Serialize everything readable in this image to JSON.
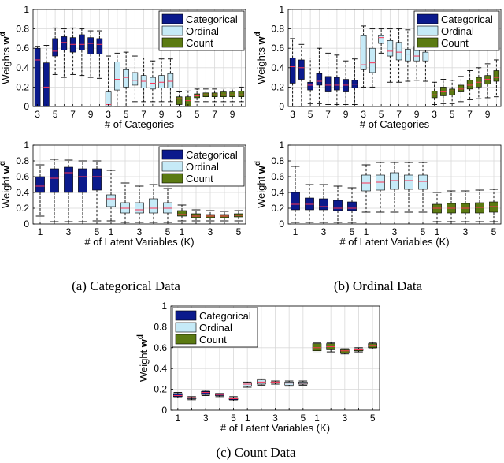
{
  "colors": {
    "categorical": "#0b1a8c",
    "ordinal": "#c6eaf7",
    "count": "#5b7a12",
    "median": "#ff3355",
    "whisker": "#000000",
    "grid": "#d9d9d9"
  },
  "legend": [
    "Categorical",
    "Ordinal",
    "Count"
  ],
  "captions": {
    "a": "(a) Categorical Data",
    "b": "(b) Ordinal Data",
    "c": "(c) Count Data"
  },
  "chart_data": [
    {
      "id": "a-top",
      "type": "boxplot",
      "xlabel": "# of Categories",
      "ylabel": "Weights w",
      "ylabel_sup": "d",
      "ylim": [
        0,
        1
      ],
      "yticks": [
        "0",
        "0.2",
        "0.4",
        "0.6",
        "0.8",
        "1"
      ],
      "xticklabels": [
        "3",
        "",
        "5",
        "",
        "7",
        "",
        "9",
        "",
        "3",
        "",
        "5",
        "",
        "7",
        "",
        "9",
        "",
        "3",
        "",
        "5",
        "",
        "7",
        "",
        "9",
        ""
      ],
      "legend_position": "top-right",
      "grid": true,
      "groups": [
        {
          "series": "Categorical",
          "boxes": [
            {
              "q1": 0.0,
              "med": 0.48,
              "q3": 0.6,
              "lo": 0.0,
              "hi": 0.62
            },
            {
              "q1": 0.0,
              "med": 0.2,
              "q3": 0.45,
              "lo": 0.0,
              "hi": 0.63
            },
            {
              "q1": 0.52,
              "med": 0.57,
              "q3": 0.7,
              "lo": 0.33,
              "hi": 0.81
            },
            {
              "q1": 0.58,
              "med": 0.66,
              "q3": 0.72,
              "lo": 0.3,
              "hi": 0.8
            },
            {
              "q1": 0.56,
              "med": 0.64,
              "q3": 0.71,
              "lo": 0.33,
              "hi": 0.81
            },
            {
              "q1": 0.58,
              "med": 0.64,
              "q3": 0.74,
              "lo": 0.32,
              "hi": 0.8
            },
            {
              "q1": 0.54,
              "med": 0.65,
              "q3": 0.71,
              "lo": 0.3,
              "hi": 0.78
            },
            {
              "q1": 0.54,
              "med": 0.64,
              "q3": 0.7,
              "lo": 0.29,
              "hi": 0.78
            }
          ]
        },
        {
          "series": "Ordinal",
          "boxes": [
            {
              "q1": 0.0,
              "med": 0.02,
              "q3": 0.15,
              "lo": 0.0,
              "hi": 0.52
            },
            {
              "q1": 0.17,
              "med": 0.28,
              "q3": 0.46,
              "lo": 0.0,
              "hi": 0.55
            },
            {
              "q1": 0.2,
              "med": 0.3,
              "q3": 0.38,
              "lo": 0.0,
              "hi": 0.56
            },
            {
              "q1": 0.22,
              "med": 0.27,
              "q3": 0.35,
              "lo": 0.05,
              "hi": 0.52
            },
            {
              "q1": 0.19,
              "med": 0.26,
              "q3": 0.32,
              "lo": 0.05,
              "hi": 0.5
            },
            {
              "q1": 0.18,
              "med": 0.24,
              "q3": 0.3,
              "lo": 0.05,
              "hi": 0.47
            },
            {
              "q1": 0.19,
              "med": 0.25,
              "q3": 0.32,
              "lo": 0.05,
              "hi": 0.49
            },
            {
              "q1": 0.19,
              "med": 0.26,
              "q3": 0.34,
              "lo": 0.05,
              "hi": 0.49
            }
          ]
        },
        {
          "series": "Count",
          "boxes": [
            {
              "q1": 0.02,
              "med": 0.08,
              "q3": 0.1,
              "lo": 0.0,
              "hi": 0.15
            },
            {
              "q1": 0.0,
              "med": 0.06,
              "q3": 0.1,
              "lo": 0.0,
              "hi": 0.16
            },
            {
              "q1": 0.09,
              "med": 0.11,
              "q3": 0.13,
              "lo": 0.05,
              "hi": 0.18
            },
            {
              "q1": 0.1,
              "med": 0.12,
              "q3": 0.14,
              "lo": 0.05,
              "hi": 0.18
            },
            {
              "q1": 0.1,
              "med": 0.12,
              "q3": 0.14,
              "lo": 0.05,
              "hi": 0.18
            },
            {
              "q1": 0.1,
              "med": 0.12,
              "q3": 0.15,
              "lo": 0.05,
              "hi": 0.19
            },
            {
              "q1": 0.1,
              "med": 0.12,
              "q3": 0.15,
              "lo": 0.05,
              "hi": 0.19
            },
            {
              "q1": 0.1,
              "med": 0.12,
              "q3": 0.16,
              "lo": 0.05,
              "hi": 0.2
            }
          ]
        }
      ]
    },
    {
      "id": "b-top",
      "type": "boxplot",
      "xlabel": "# of Categories",
      "ylabel": "Weights w",
      "ylabel_sup": "d",
      "ylim": [
        0,
        1
      ],
      "yticks": [
        "0",
        "0.2",
        "0.4",
        "0.6",
        "0.8",
        "1"
      ],
      "xticklabels": [
        "3",
        "",
        "5",
        "",
        "7",
        "",
        "9",
        "",
        "3",
        "",
        "5",
        "",
        "7",
        "",
        "9",
        "",
        "3",
        "",
        "5",
        "",
        "7",
        "",
        "9",
        ""
      ],
      "legend_position": "top-right",
      "grid": true,
      "groups": [
        {
          "series": "Categorical",
          "boxes": [
            {
              "q1": 0.24,
              "med": 0.41,
              "q3": 0.5,
              "lo": 0.0,
              "hi": 0.7
            },
            {
              "q1": 0.28,
              "med": 0.4,
              "q3": 0.48,
              "lo": 0.0,
              "hi": 0.64
            },
            {
              "q1": 0.17,
              "med": 0.22,
              "q3": 0.25,
              "lo": 0.03,
              "hi": 0.5
            },
            {
              "q1": 0.22,
              "med": 0.26,
              "q3": 0.34,
              "lo": 0.03,
              "hi": 0.6
            },
            {
              "q1": 0.15,
              "med": 0.22,
              "q3": 0.31,
              "lo": 0.02,
              "hi": 0.55
            },
            {
              "q1": 0.17,
              "med": 0.22,
              "q3": 0.3,
              "lo": 0.02,
              "hi": 0.53
            },
            {
              "q1": 0.15,
              "med": 0.22,
              "q3": 0.28,
              "lo": 0.02,
              "hi": 0.47
            },
            {
              "q1": 0.19,
              "med": 0.23,
              "q3": 0.27,
              "lo": 0.02,
              "hi": 0.49
            }
          ]
        },
        {
          "series": "Ordinal",
          "boxes": [
            {
              "q1": 0.38,
              "med": 0.43,
              "q3": 0.73,
              "lo": 0.2,
              "hi": 0.83
            },
            {
              "q1": 0.35,
              "med": 0.45,
              "q3": 0.6,
              "lo": 0.2,
              "hi": 0.8
            },
            {
              "q1": 0.65,
              "med": 0.71,
              "q3": 0.73,
              "lo": 0.55,
              "hi": 0.8
            },
            {
              "q1": 0.52,
              "med": 0.57,
              "q3": 0.68,
              "lo": 0.25,
              "hi": 0.8
            },
            {
              "q1": 0.48,
              "med": 0.56,
              "q3": 0.66,
              "lo": 0.25,
              "hi": 0.8
            },
            {
              "q1": 0.47,
              "med": 0.54,
              "q3": 0.59,
              "lo": 0.26,
              "hi": 0.79
            },
            {
              "q1": 0.47,
              "med": 0.52,
              "q3": 0.62,
              "lo": 0.27,
              "hi": 0.8
            },
            {
              "q1": 0.47,
              "med": 0.5,
              "q3": 0.56,
              "lo": 0.26,
              "hi": 0.78
            }
          ]
        },
        {
          "series": "Count",
          "boxes": [
            {
              "q1": 0.09,
              "med": 0.12,
              "q3": 0.16,
              "lo": 0.02,
              "hi": 0.25
            },
            {
              "q1": 0.11,
              "med": 0.15,
              "q3": 0.2,
              "lo": 0.03,
              "hi": 0.28
            },
            {
              "q1": 0.12,
              "med": 0.16,
              "q3": 0.18,
              "lo": 0.03,
              "hi": 0.27
            },
            {
              "q1": 0.15,
              "med": 0.18,
              "q3": 0.22,
              "lo": 0.05,
              "hi": 0.31
            },
            {
              "q1": 0.18,
              "med": 0.22,
              "q3": 0.27,
              "lo": 0.07,
              "hi": 0.37
            },
            {
              "q1": 0.2,
              "med": 0.25,
              "q3": 0.3,
              "lo": 0.08,
              "hi": 0.4
            },
            {
              "q1": 0.23,
              "med": 0.28,
              "q3": 0.32,
              "lo": 0.09,
              "hi": 0.44
            },
            {
              "q1": 0.26,
              "med": 0.3,
              "q3": 0.37,
              "lo": 0.1,
              "hi": 0.48
            }
          ]
        }
      ]
    },
    {
      "id": "a-bottom",
      "type": "boxplot",
      "xlabel": "# of Latent Variables (K)",
      "ylabel": "Weight w",
      "ylabel_sup": "d",
      "ylim": [
        0,
        1
      ],
      "yticks": [
        "0",
        "0.2",
        "0.4",
        "0.6",
        "0.8",
        "1"
      ],
      "xticklabels": [
        "1",
        "",
        "3",
        "",
        "5",
        "1",
        "",
        "3",
        "",
        "5",
        "1",
        "",
        "3",
        "",
        "5"
      ],
      "legend_position": "top-right",
      "grid": true,
      "groups": [
        {
          "series": "Categorical",
          "boxes": [
            {
              "q1": 0.4,
              "med": 0.48,
              "q3": 0.6,
              "lo": 0.1,
              "hi": 0.75
            },
            {
              "q1": 0.4,
              "med": 0.58,
              "q3": 0.7,
              "lo": 0.03,
              "hi": 0.82
            },
            {
              "q1": 0.4,
              "med": 0.65,
              "q3": 0.72,
              "lo": 0.03,
              "hi": 0.81
            },
            {
              "q1": 0.4,
              "med": 0.6,
              "q3": 0.7,
              "lo": 0.03,
              "hi": 0.8
            },
            {
              "q1": 0.43,
              "med": 0.6,
              "q3": 0.7,
              "lo": 0.04,
              "hi": 0.8
            }
          ]
        },
        {
          "series": "Ordinal",
          "boxes": [
            {
              "q1": 0.22,
              "med": 0.32,
              "q3": 0.37,
              "lo": 0.04,
              "hi": 0.68
            },
            {
              "q1": 0.14,
              "med": 0.2,
              "q3": 0.27,
              "lo": 0.02,
              "hi": 0.52
            },
            {
              "q1": 0.14,
              "med": 0.18,
              "q3": 0.27,
              "lo": 0.02,
              "hi": 0.48
            },
            {
              "q1": 0.14,
              "med": 0.2,
              "q3": 0.32,
              "lo": 0.02,
              "hi": 0.5
            },
            {
              "q1": 0.14,
              "med": 0.2,
              "q3": 0.27,
              "lo": 0.02,
              "hi": 0.45
            }
          ]
        },
        {
          "series": "Count",
          "boxes": [
            {
              "q1": 0.1,
              "med": 0.12,
              "q3": 0.17,
              "lo": 0.04,
              "hi": 0.24
            },
            {
              "q1": 0.08,
              "med": 0.1,
              "q3": 0.13,
              "lo": 0.04,
              "hi": 0.18
            },
            {
              "q1": 0.08,
              "med": 0.1,
              "q3": 0.12,
              "lo": 0.04,
              "hi": 0.17
            },
            {
              "q1": 0.08,
              "med": 0.1,
              "q3": 0.12,
              "lo": 0.04,
              "hi": 0.16
            },
            {
              "q1": 0.09,
              "med": 0.11,
              "q3": 0.13,
              "lo": 0.04,
              "hi": 0.17
            }
          ]
        }
      ]
    },
    {
      "id": "b-bottom",
      "type": "boxplot",
      "xlabel": "# of Latent Variables (K)",
      "ylabel": "Weight w",
      "ylabel_sup": "d",
      "ylim": [
        0,
        1
      ],
      "yticks": [
        "0",
        "0.2",
        "0.4",
        "0.6",
        "0.8",
        "1"
      ],
      "xticklabels": [
        "1",
        "",
        "3",
        "",
        "5",
        "1",
        "",
        "3",
        "",
        "5",
        "1",
        "",
        "3",
        "",
        "5"
      ],
      "legend_position": "none",
      "grid": true,
      "groups": [
        {
          "series": "Categorical",
          "boxes": [
            {
              "q1": 0.18,
              "med": 0.25,
              "q3": 0.4,
              "lo": 0.02,
              "hi": 0.73
            },
            {
              "q1": 0.18,
              "med": 0.25,
              "q3": 0.33,
              "lo": 0.02,
              "hi": 0.5
            },
            {
              "q1": 0.18,
              "med": 0.22,
              "q3": 0.32,
              "lo": 0.02,
              "hi": 0.5
            },
            {
              "q1": 0.17,
              "med": 0.2,
              "q3": 0.3,
              "lo": 0.02,
              "hi": 0.48
            },
            {
              "q1": 0.17,
              "med": 0.2,
              "q3": 0.28,
              "lo": 0.02,
              "hi": 0.46
            }
          ]
        },
        {
          "series": "Ordinal",
          "boxes": [
            {
              "q1": 0.42,
              "med": 0.52,
              "q3": 0.62,
              "lo": 0.15,
              "hi": 0.75
            },
            {
              "q1": 0.43,
              "med": 0.53,
              "q3": 0.62,
              "lo": 0.15,
              "hi": 0.78
            },
            {
              "q1": 0.44,
              "med": 0.55,
              "q3": 0.65,
              "lo": 0.15,
              "hi": 0.78
            },
            {
              "q1": 0.44,
              "med": 0.55,
              "q3": 0.62,
              "lo": 0.15,
              "hi": 0.78
            },
            {
              "q1": 0.44,
              "med": 0.54,
              "q3": 0.62,
              "lo": 0.15,
              "hi": 0.78
            }
          ]
        },
        {
          "series": "Count",
          "boxes": [
            {
              "q1": 0.14,
              "med": 0.2,
              "q3": 0.25,
              "lo": 0.03,
              "hi": 0.4
            },
            {
              "q1": 0.14,
              "med": 0.2,
              "q3": 0.26,
              "lo": 0.03,
              "hi": 0.42
            },
            {
              "q1": 0.14,
              "med": 0.2,
              "q3": 0.26,
              "lo": 0.03,
              "hi": 0.42
            },
            {
              "q1": 0.14,
              "med": 0.21,
              "q3": 0.27,
              "lo": 0.03,
              "hi": 0.43
            },
            {
              "q1": 0.15,
              "med": 0.22,
              "q3": 0.28,
              "lo": 0.03,
              "hi": 0.44
            }
          ]
        }
      ]
    },
    {
      "id": "c",
      "type": "boxplot",
      "xlabel": "# of Latent Variables (K)",
      "ylabel": "Weight w",
      "ylabel_sup": "d",
      "ylim": [
        0,
        1
      ],
      "yticks": [
        "0",
        "0.2",
        "0.4",
        "0.6",
        "0.8",
        "1"
      ],
      "xticklabels": [
        "1",
        "",
        "3",
        "",
        "5",
        "1",
        "",
        "3",
        "",
        "5",
        "1",
        "",
        "3",
        "",
        "5"
      ],
      "legend_position": "top-left",
      "grid": true,
      "groups": [
        {
          "series": "Categorical",
          "boxes": [
            {
              "q1": 0.13,
              "med": 0.14,
              "q3": 0.16,
              "lo": 0.12,
              "hi": 0.17
            },
            {
              "q1": 0.11,
              "med": 0.12,
              "q3": 0.12,
              "lo": 0.1,
              "hi": 0.13
            },
            {
              "q1": 0.15,
              "med": 0.17,
              "q3": 0.18,
              "lo": 0.14,
              "hi": 0.19
            },
            {
              "q1": 0.14,
              "med": 0.15,
              "q3": 0.16,
              "lo": 0.13,
              "hi": 0.16
            },
            {
              "q1": 0.1,
              "med": 0.11,
              "q3": 0.12,
              "lo": 0.09,
              "hi": 0.13
            }
          ]
        },
        {
          "series": "Ordinal",
          "boxes": [
            {
              "q1": 0.23,
              "med": 0.25,
              "q3": 0.26,
              "lo": 0.22,
              "hi": 0.27
            },
            {
              "q1": 0.25,
              "med": 0.27,
              "q3": 0.29,
              "lo": 0.24,
              "hi": 0.3
            },
            {
              "q1": 0.26,
              "med": 0.27,
              "q3": 0.27,
              "lo": 0.25,
              "hi": 0.28
            },
            {
              "q1": 0.24,
              "med": 0.26,
              "q3": 0.27,
              "lo": 0.23,
              "hi": 0.28
            },
            {
              "q1": 0.25,
              "med": 0.26,
              "q3": 0.27,
              "lo": 0.24,
              "hi": 0.28
            }
          ]
        },
        {
          "series": "Count",
          "boxes": [
            {
              "q1": 0.57,
              "med": 0.6,
              "q3": 0.64,
              "lo": 0.55,
              "hi": 0.65
            },
            {
              "q1": 0.58,
              "med": 0.61,
              "q3": 0.64,
              "lo": 0.56,
              "hi": 0.65
            },
            {
              "q1": 0.55,
              "med": 0.57,
              "q3": 0.58,
              "lo": 0.54,
              "hi": 0.59
            },
            {
              "q1": 0.57,
              "med": 0.58,
              "q3": 0.59,
              "lo": 0.56,
              "hi": 0.6
            },
            {
              "q1": 0.6,
              "med": 0.62,
              "q3": 0.64,
              "lo": 0.59,
              "hi": 0.65
            }
          ]
        }
      ]
    }
  ]
}
